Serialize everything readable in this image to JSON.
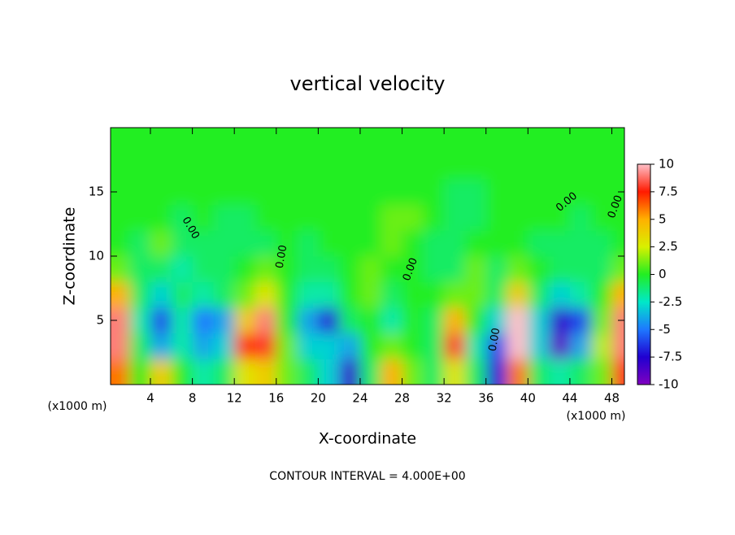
{
  "chart_data": {
    "type": "heatmap",
    "title": "vertical velocity",
    "x_label": "X-coordinate",
    "y_label": "Z-coordinate",
    "unit_label": "(x1000 m)",
    "footer": "CONTOUR INTERVAL = 4.000E+00",
    "contour_labels": [
      "0.00",
      "0.00",
      "0.00",
      "0.00",
      "0.00",
      "0.00"
    ],
    "xlim": [
      0.2,
      49.2
    ],
    "ylim": [
      0,
      20
    ],
    "xticks": [
      4,
      8,
      12,
      16,
      20,
      24,
      28,
      32,
      36,
      40,
      44,
      48
    ],
    "yticks": [
      5,
      10,
      15
    ],
    "x": [
      1,
      3,
      5,
      7,
      9,
      11,
      13,
      15,
      17,
      19,
      21,
      23,
      25,
      27,
      29,
      31,
      33,
      35,
      37,
      39,
      41,
      43,
      45,
      47,
      49
    ],
    "y": [
      1,
      3,
      5,
      7,
      9,
      11,
      13,
      15,
      17,
      19
    ],
    "z": [
      [
        6,
        0,
        4,
        0,
        -2,
        -1,
        3,
        4,
        1,
        -1,
        -3,
        -8,
        -1,
        5,
        1,
        -1,
        3,
        -1,
        -7,
        6,
        -1,
        -2,
        -1,
        1,
        8
      ],
      [
        9,
        -1,
        -4,
        -2,
        -4,
        -3,
        7,
        8,
        1,
        -3,
        -3,
        -4,
        0,
        1,
        0,
        -1,
        8,
        -2,
        -6,
        10,
        -3,
        -9,
        -4,
        2,
        9
      ],
      [
        9,
        -2,
        -6,
        -2,
        -5,
        -4,
        4,
        9,
        0,
        -4,
        -7,
        -1,
        0,
        -2,
        0,
        -1,
        5,
        0,
        -3,
        10,
        -3,
        -8,
        -6,
        1,
        9
      ],
      [
        5,
        -1,
        -3,
        -1,
        -2,
        -1,
        1,
        3,
        0,
        -2,
        -2,
        0,
        1,
        -1,
        0,
        0,
        1,
        1,
        -1,
        4,
        -1,
        -3,
        -2,
        0,
        5
      ],
      [
        1,
        -1,
        -1,
        -2,
        -1,
        -1,
        0,
        1,
        0,
        -1,
        -1,
        0,
        1,
        0,
        0,
        -1,
        -1,
        1,
        -1,
        1,
        0,
        -1,
        -1,
        -1,
        1
      ],
      [
        0,
        -1,
        1,
        -1,
        -1,
        -1,
        -1,
        -1,
        0,
        -1,
        0,
        0,
        0,
        1,
        0,
        -1,
        -1,
        0,
        0,
        0,
        -1,
        -1,
        -1,
        -1,
        0
      ],
      [
        0,
        0,
        0,
        -1,
        0,
        -1,
        -1,
        0,
        0,
        0,
        0,
        0,
        0,
        1,
        1,
        0,
        -1,
        -1,
        0,
        0,
        0,
        0,
        -1,
        0,
        0
      ],
      [
        0,
        0,
        0,
        0,
        0,
        0,
        0,
        0,
        0,
        0,
        0,
        0,
        0,
        0,
        0,
        0,
        -1,
        -1,
        0,
        0,
        0,
        0,
        0,
        0,
        0
      ],
      [
        0,
        0,
        0,
        0,
        0,
        0,
        0,
        0,
        0,
        0,
        0,
        0,
        0,
        0,
        0,
        0,
        0,
        0,
        0,
        0,
        0,
        0,
        0,
        0,
        0
      ],
      [
        0,
        0,
        0,
        0,
        0,
        0,
        0,
        0,
        0,
        0,
        0,
        0,
        0,
        0,
        0,
        0,
        0,
        0,
        0,
        0,
        0,
        0,
        0,
        0,
        0
      ]
    ],
    "colorbar_ticks": [
      10,
      7.5,
      5,
      2.5,
      0,
      -2.5,
      -5,
      -7.5,
      -10
    ],
    "colorbar_colors": [
      "#ffc0c8",
      "#ff1a00",
      "#ffb000",
      "#d8f000",
      "#22ee22",
      "#00e8c8",
      "#1e78ff",
      "#2000d0",
      "#8000c0"
    ],
    "clim": [
      -10,
      10
    ]
  }
}
